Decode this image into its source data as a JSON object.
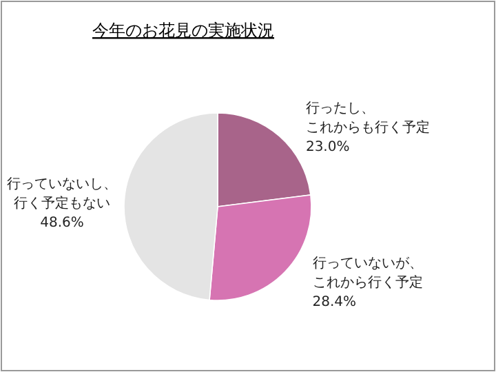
{
  "chart_data": {
    "type": "pie",
    "title": "今年のお花見の実施状況",
    "categories": [
      "行ったし、これからも行く予定",
      "行っていないが、これから行く予定",
      "行っていないし、行く予定もない"
    ],
    "value_labels": [
      "23.0%",
      "28.4%",
      "48.6%"
    ],
    "values": [
      23.0,
      28.4,
      48.6
    ],
    "colors": [
      "#a8648a",
      "#d674b2",
      "#e4e4e4"
    ]
  }
}
